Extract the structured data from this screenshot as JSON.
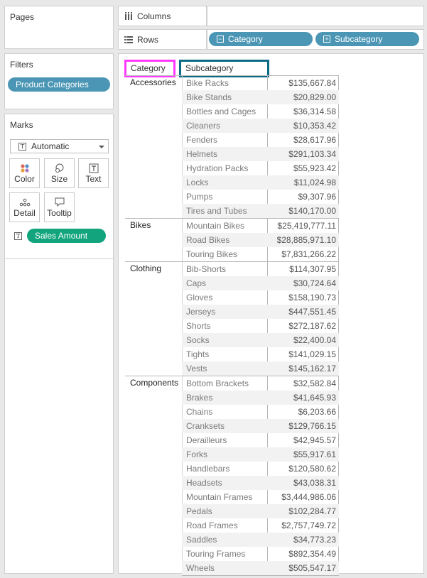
{
  "pages": {
    "title": "Pages"
  },
  "filters": {
    "title": "Filters",
    "pill": "Product Categories"
  },
  "marks": {
    "title": "Marks",
    "type": "Automatic",
    "buttons": {
      "color": "Color",
      "size": "Size",
      "text": "Text",
      "detail": "Detail",
      "tooltip": "Tooltip"
    },
    "pill": "Sales Amount"
  },
  "columns_shelf": {
    "label": "Columns"
  },
  "rows_shelf": {
    "label": "Rows",
    "pills": [
      "Category",
      "Subcategory"
    ]
  },
  "headers": {
    "category": "Category",
    "subcategory": "Subcategory"
  },
  "colors": {
    "pill_blue": "#4b96b5",
    "pill_green": "#12a57d",
    "category_highlight": "#ff39ff",
    "subcategory_highlight": "#0a6b86"
  },
  "table": [
    {
      "category": "Accessories",
      "rows": [
        {
          "sub": "Bike Racks",
          "amount": "$135,667.84"
        },
        {
          "sub": "Bike Stands",
          "amount": "$20,829.00"
        },
        {
          "sub": "Bottles and Cages",
          "amount": "$36,314.58"
        },
        {
          "sub": "Cleaners",
          "amount": "$10,353.42"
        },
        {
          "sub": "Fenders",
          "amount": "$28,617.96"
        },
        {
          "sub": "Helmets",
          "amount": "$291,103.34"
        },
        {
          "sub": "Hydration Packs",
          "amount": "$55,923.42"
        },
        {
          "sub": "Locks",
          "amount": "$11,024.98"
        },
        {
          "sub": "Pumps",
          "amount": "$9,307.96"
        },
        {
          "sub": "Tires and Tubes",
          "amount": "$140,170.00"
        }
      ]
    },
    {
      "category": "Bikes",
      "rows": [
        {
          "sub": "Mountain Bikes",
          "amount": "$25,419,777.11"
        },
        {
          "sub": "Road Bikes",
          "amount": "$28,885,971.10"
        },
        {
          "sub": "Touring Bikes",
          "amount": "$7,831,266.22"
        }
      ]
    },
    {
      "category": "Clothing",
      "rows": [
        {
          "sub": "Bib-Shorts",
          "amount": "$114,307.95"
        },
        {
          "sub": "Caps",
          "amount": "$30,724.64"
        },
        {
          "sub": "Gloves",
          "amount": "$158,190.73"
        },
        {
          "sub": "Jerseys",
          "amount": "$447,551.45"
        },
        {
          "sub": "Shorts",
          "amount": "$272,187.62"
        },
        {
          "sub": "Socks",
          "amount": "$22,400.04"
        },
        {
          "sub": "Tights",
          "amount": "$141,029.15"
        },
        {
          "sub": "Vests",
          "amount": "$145,162.17"
        }
      ]
    },
    {
      "category": "Components",
      "rows": [
        {
          "sub": "Bottom Brackets",
          "amount": "$32,582.84"
        },
        {
          "sub": "Brakes",
          "amount": "$41,645.93"
        },
        {
          "sub": "Chains",
          "amount": "$6,203.66"
        },
        {
          "sub": "Cranksets",
          "amount": "$129,766.15"
        },
        {
          "sub": "Derailleurs",
          "amount": "$42,945.57"
        },
        {
          "sub": "Forks",
          "amount": "$55,917.61"
        },
        {
          "sub": "Handlebars",
          "amount": "$120,580.62"
        },
        {
          "sub": "Headsets",
          "amount": "$43,038.31"
        },
        {
          "sub": "Mountain Frames",
          "amount": "$3,444,986.06"
        },
        {
          "sub": "Pedals",
          "amount": "$102,284.77"
        },
        {
          "sub": "Road Frames",
          "amount": "$2,757,749.72"
        },
        {
          "sub": "Saddles",
          "amount": "$34,773.23"
        },
        {
          "sub": "Touring Frames",
          "amount": "$892,354.49"
        },
        {
          "sub": "Wheels",
          "amount": "$505,547.17"
        }
      ]
    }
  ]
}
